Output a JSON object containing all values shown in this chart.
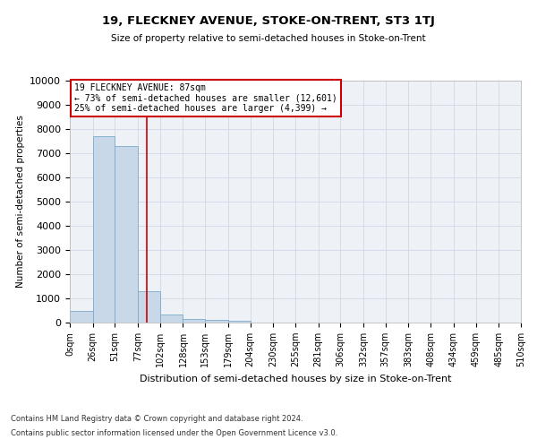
{
  "title": "19, FLECKNEY AVENUE, STOKE-ON-TRENT, ST3 1TJ",
  "subtitle": "Size of property relative to semi-detached houses in Stoke-on-Trent",
  "xlabel": "Distribution of semi-detached houses by size in Stoke-on-Trent",
  "ylabel": "Number of semi-detached properties",
  "footer_line1": "Contains HM Land Registry data © Crown copyright and database right 2024.",
  "footer_line2": "Contains public sector information licensed under the Open Government Licence v3.0.",
  "bar_edges": [
    0,
    26,
    51,
    77,
    102,
    128,
    153,
    179,
    204,
    230,
    255,
    281,
    306,
    332,
    357,
    383,
    408,
    434,
    459,
    485,
    510
  ],
  "bar_heights": [
    500,
    7700,
    7300,
    1300,
    350,
    150,
    100,
    60,
    0,
    0,
    0,
    0,
    0,
    0,
    0,
    0,
    0,
    0,
    0,
    0
  ],
  "bar_color": "#c8d8e8",
  "bar_edgecolor": "#7aaac8",
  "property_line_x": 87,
  "property_line_color": "#cc0000",
  "annotation_title": "19 FLECKNEY AVENUE: 87sqm",
  "annotation_line1": "← 73% of semi-detached houses are smaller (12,601)",
  "annotation_line2": "25% of semi-detached houses are larger (4,399) →",
  "annotation_box_edgecolor": "#cc0000",
  "ylim": [
    0,
    10000
  ],
  "yticks": [
    0,
    1000,
    2000,
    3000,
    4000,
    5000,
    6000,
    7000,
    8000,
    9000,
    10000
  ],
  "grid_color": "#d0d8e8",
  "bg_color": "#eef2f7"
}
